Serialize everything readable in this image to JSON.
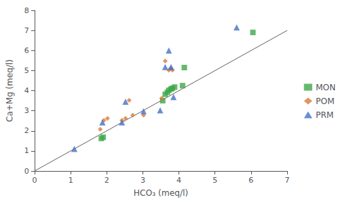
{
  "chart_data": {
    "type": "scatter",
    "xlabel": "HCO₃ (meq/l)",
    "ylabel": "Ca+Mg (meq/l)",
    "xlim": [
      0,
      7
    ],
    "ylim": [
      0,
      8
    ],
    "xticks": [
      0,
      1,
      2,
      3,
      4,
      5,
      6,
      7
    ],
    "yticks": [
      0,
      1,
      2,
      3,
      4,
      5,
      6,
      7,
      8
    ],
    "grid": false,
    "legend": "right",
    "series": [
      {
        "type": "line",
        "color": "#606060",
        "line_style": "solid",
        "x": [
          0,
          7
        ],
        "values": [
          0,
          7
        ]
      },
      {
        "type": "scatter",
        "name": "MON",
        "color": "#3EA84A",
        "marker": "square",
        "x": [
          1.85,
          1.9,
          3.55,
          3.62,
          3.68,
          3.72,
          3.78,
          3.82,
          3.88,
          4.1,
          4.15,
          6.05
        ],
        "values": [
          1.62,
          1.68,
          3.5,
          3.82,
          3.92,
          4.02,
          4.08,
          4.12,
          4.18,
          4.25,
          5.15,
          6.9
        ]
      },
      {
        "type": "scatter",
        "name": "POM",
        "color": "#D97B3A",
        "marker": "diamond",
        "x": [
          1.82,
          1.92,
          2.02,
          2.42,
          2.52,
          2.62,
          2.72,
          3.02,
          3.52,
          3.62,
          3.72,
          3.78,
          3.82
        ],
        "values": [
          2.08,
          2.52,
          2.62,
          2.52,
          2.62,
          3.52,
          2.78,
          2.78,
          3.62,
          5.48,
          5.02,
          5.12,
          5.02
        ]
      },
      {
        "type": "scatter",
        "name": "PRM",
        "color": "#4472C4",
        "marker": "triangle",
        "x": [
          1.1,
          1.88,
          2.42,
          2.52,
          3.02,
          3.48,
          3.62,
          3.72,
          3.78,
          3.85,
          5.6
        ],
        "values": [
          1.1,
          2.42,
          2.42,
          3.45,
          2.98,
          3.02,
          5.18,
          6.0,
          5.18,
          3.68,
          7.15
        ]
      }
    ]
  }
}
